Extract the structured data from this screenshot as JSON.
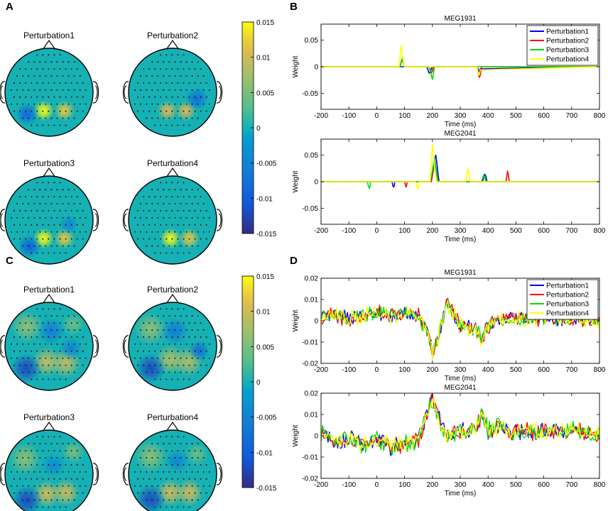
{
  "panel_letters": [
    "A",
    "B",
    "C",
    "D"
  ],
  "colorbar_ticks": [
    "0.015",
    "0.01",
    "0.005",
    "0",
    "-0.005",
    "-0.01",
    "-0.015"
  ],
  "colors": {
    "Perturbation1": "#0000ff",
    "Perturbation2": "#ff0000",
    "Perturbation3": "#00dd00",
    "Perturbation4": "#ffff00"
  },
  "chart_data": [
    {
      "panel": "A",
      "type": "heatmap",
      "subtype": "topographic-maps",
      "maps": [
        "Perturbation1",
        "Perturbation2",
        "Perturbation3",
        "Perturbation4"
      ],
      "colorbar": {
        "min": -0.015,
        "max": 0.015
      },
      "blobs": [
        [
          {
            "x": -0.12,
            "y": -0.42,
            "v": 0.015,
            "s": 0.09
          },
          {
            "x": 0.35,
            "y": -0.42,
            "v": 0.012,
            "s": 0.09
          },
          {
            "x": -0.5,
            "y": -0.5,
            "v": -0.009,
            "s": 0.1
          }
        ],
        [
          {
            "x": -0.12,
            "y": -0.42,
            "v": 0.011,
            "s": 0.09
          },
          {
            "x": 0.3,
            "y": -0.42,
            "v": 0.011,
            "s": 0.09
          },
          {
            "x": 0.55,
            "y": -0.15,
            "v": -0.008,
            "s": 0.1
          }
        ],
        [
          {
            "x": -0.12,
            "y": -0.42,
            "v": 0.015,
            "s": 0.09
          },
          {
            "x": 0.35,
            "y": -0.42,
            "v": 0.012,
            "s": 0.09
          },
          {
            "x": -0.45,
            "y": -0.6,
            "v": -0.01,
            "s": 0.1
          },
          {
            "x": 0.45,
            "y": -0.1,
            "v": -0.005,
            "s": 0.08
          }
        ],
        [
          {
            "x": -0.05,
            "y": -0.42,
            "v": 0.015,
            "s": 0.09
          },
          {
            "x": 0.38,
            "y": -0.42,
            "v": 0.012,
            "s": 0.09
          }
        ]
      ]
    },
    {
      "panel": "B",
      "type": "line",
      "subtype": "multi-subplot",
      "series_names": [
        "Perturbation1",
        "Perturbation2",
        "Perturbation3",
        "Perturbation4"
      ],
      "xlabel": "Time (ms)",
      "ylabel": "Weight",
      "xlim": [
        -200,
        800
      ],
      "xticks": [
        -200,
        -100,
        0,
        100,
        200,
        300,
        400,
        500,
        600,
        700,
        800
      ],
      "subplots": [
        {
          "title": "MEG1931",
          "ylim": [
            -0.08,
            0.08
          ],
          "yticks": [
            -0.05,
            0,
            0.05
          ],
          "legend": "top-right",
          "series": [
            {
              "name": "Perturbation1",
              "x": [
                -200,
                180,
                184,
                188,
                192,
                196,
                200,
                204,
                360,
                364,
                368,
                372,
                800
              ],
              "y": [
                0,
                0,
                -0.006,
                -0.012,
                -0.01,
                -0.004,
                0,
                0,
                0,
                -0.004,
                -0.01,
                -0.004,
                0
              ]
            },
            {
              "name": "Perturbation2",
              "x": [
                -200,
                84,
                88,
                92,
                96,
                100,
                188,
                192,
                196,
                200,
                204,
                360,
                364,
                368,
                372,
                376,
                800
              ],
              "y": [
                0,
                0,
                0.008,
                0.014,
                0.006,
                0,
                0,
                -0.006,
                -0.012,
                -0.008,
                0,
                0,
                -0.01,
                -0.02,
                -0.016,
                0,
                0
              ]
            },
            {
              "name": "Perturbation3",
              "x": [
                -200,
                84,
                88,
                92,
                96,
                100,
                188,
                192,
                196,
                200,
                204,
                208,
                800
              ],
              "y": [
                0,
                0,
                0.01,
                0.016,
                0.008,
                0,
                0,
                -0.008,
                -0.016,
                -0.024,
                -0.012,
                0,
                0
              ]
            },
            {
              "name": "Perturbation4",
              "x": [
                -200,
                80,
                84,
                88,
                92,
                96,
                100,
                360,
                364,
                368,
                372,
                800
              ],
              "y": [
                0,
                0,
                0.02,
                0.04,
                0.025,
                0.008,
                0,
                0,
                -0.01,
                -0.016,
                -0.006,
                0
              ]
            }
          ]
        },
        {
          "title": "MEG2041",
          "ylim": [
            -0.08,
            0.08
          ],
          "yticks": [
            -0.05,
            0,
            0.05
          ],
          "legend": "none",
          "series": [
            {
              "name": "Perturbation1",
              "x": [
                -200,
                55,
                58,
                62,
                65,
                196,
                200,
                204,
                208,
                212,
                216,
                220,
                224,
                380,
                384,
                388,
                392,
                396,
                800
              ],
              "y": [
                0,
                0,
                -0.008,
                -0.01,
                0,
                0,
                0.012,
                0.025,
                0.04,
                0.05,
                0.035,
                0.015,
                0,
                0,
                0.008,
                0.014,
                0.01,
                0,
                0
              ]
            },
            {
              "name": "Perturbation2",
              "x": [
                -200,
                100,
                103,
                106,
                110,
                196,
                200,
                204,
                208,
                212,
                216,
                220,
                464,
                467,
                470,
                473,
                476,
                800
              ],
              "y": [
                0,
                0,
                -0.006,
                -0.01,
                0,
                0,
                0.015,
                0.03,
                0.04,
                0.028,
                0.012,
                0,
                0,
                0.01,
                0.02,
                0.012,
                0,
                0
              ]
            },
            {
              "name": "Perturbation3",
              "x": [
                -200,
                -34,
                -30,
                -26,
                -22,
                192,
                196,
                200,
                204,
                208,
                212,
                216,
                220,
                376,
                380,
                384,
                388,
                392,
                800
              ],
              "y": [
                0,
                0,
                -0.008,
                -0.013,
                0,
                0,
                0.01,
                0.02,
                0.035,
                0.045,
                0.03,
                0.012,
                0,
                0,
                0.006,
                0.013,
                0.008,
                0,
                0
              ]
            },
            {
              "name": "Perturbation4",
              "x": [
                -200,
                140,
                144,
                148,
                152,
                192,
                196,
                200,
                204,
                208,
                212,
                216,
                320,
                324,
                328,
                332,
                336,
                800
              ],
              "y": [
                0,
                0,
                -0.008,
                -0.015,
                0,
                0,
                0.035,
                0.07,
                0.05,
                0.025,
                0.01,
                0,
                0,
                0.015,
                0.025,
                0.01,
                0,
                0
              ]
            }
          ]
        }
      ]
    },
    {
      "panel": "C",
      "type": "heatmap",
      "subtype": "topographic-maps",
      "maps": [
        "Perturbation1",
        "Perturbation2",
        "Perturbation3",
        "Perturbation4"
      ],
      "colorbar": {
        "min": -0.015,
        "max": 0.015
      },
      "blobs": [
        [
          {
            "x": -0.05,
            "y": -0.35,
            "v": 0.009,
            "s": 0.13
          },
          {
            "x": 0.38,
            "y": -0.38,
            "v": 0.009,
            "s": 0.13
          },
          {
            "x": -0.52,
            "y": -0.5,
            "v": -0.012,
            "s": 0.13
          },
          {
            "x": 0.05,
            "y": 0.35,
            "v": -0.006,
            "s": 0.12
          },
          {
            "x": -0.5,
            "y": 0.45,
            "v": 0.006,
            "s": 0.14
          },
          {
            "x": 0.55,
            "y": 0.5,
            "v": 0.004,
            "s": 0.1
          },
          {
            "x": 0.5,
            "y": -0.05,
            "v": -0.005,
            "s": 0.1
          }
        ],
        [
          {
            "x": -0.05,
            "y": -0.3,
            "v": 0.008,
            "s": 0.13
          },
          {
            "x": 0.35,
            "y": -0.35,
            "v": 0.008,
            "s": 0.13
          },
          {
            "x": -0.5,
            "y": -0.5,
            "v": -0.012,
            "s": 0.13
          },
          {
            "x": 0.05,
            "y": 0.35,
            "v": -0.006,
            "s": 0.12
          },
          {
            "x": -0.5,
            "y": 0.4,
            "v": 0.006,
            "s": 0.14
          },
          {
            "x": 0.6,
            "y": -0.1,
            "v": -0.008,
            "s": 0.09
          }
        ],
        [
          {
            "x": -0.05,
            "y": -0.45,
            "v": 0.01,
            "s": 0.12
          },
          {
            "x": 0.38,
            "y": -0.42,
            "v": 0.01,
            "s": 0.12
          },
          {
            "x": -0.5,
            "y": -0.6,
            "v": -0.012,
            "s": 0.13
          },
          {
            "x": -0.55,
            "y": 0.35,
            "v": 0.006,
            "s": 0.14
          },
          {
            "x": 0.1,
            "y": 0.2,
            "v": -0.004,
            "s": 0.1
          },
          {
            "x": 0.55,
            "y": 0.5,
            "v": 0.005,
            "s": 0.1
          }
        ],
        [
          {
            "x": -0.05,
            "y": -0.42,
            "v": 0.01,
            "s": 0.12
          },
          {
            "x": 0.38,
            "y": -0.42,
            "v": 0.01,
            "s": 0.12
          },
          {
            "x": -0.5,
            "y": -0.58,
            "v": -0.012,
            "s": 0.13
          },
          {
            "x": -0.5,
            "y": 0.4,
            "v": 0.006,
            "s": 0.14
          },
          {
            "x": 0.1,
            "y": 0.3,
            "v": -0.005,
            "s": 0.1
          },
          {
            "x": 0.55,
            "y": 0.45,
            "v": 0.004,
            "s": 0.1
          }
        ]
      ]
    },
    {
      "panel": "D",
      "type": "line",
      "subtype": "multi-subplot",
      "series_names": [
        "Perturbation1",
        "Perturbation2",
        "Perturbation3",
        "Perturbation4"
      ],
      "xlabel": "Time (ms)",
      "ylabel": "Weight",
      "xlim": [
        -200,
        800
      ],
      "xticks": [
        -200,
        -100,
        0,
        100,
        200,
        300,
        400,
        500,
        600,
        700,
        800
      ],
      "subplots": [
        {
          "title": "MEG1931",
          "ylim": [
            -0.02,
            0.02
          ],
          "yticks": [
            -0.02,
            -0.01,
            0,
            0.01,
            0.02
          ],
          "legend": "top-right",
          "curve": {
            "x": [
              -200,
              -150,
              -100,
              -50,
              0,
              50,
              100,
              150,
              180,
              200,
              220,
              250,
              280,
              300,
              350,
              380,
              400,
              450,
              500,
              600,
              700,
              800
            ],
            "y": [
              0.002,
              0.003,
              0.001,
              0.002,
              0.004,
              0.002,
              0.004,
              0.002,
              -0.005,
              -0.015,
              -0.008,
              0.008,
              0.002,
              -0.002,
              -0.004,
              -0.008,
              -0.002,
              0.001,
              0.001,
              0.001,
              0.001,
              0
            ]
          },
          "noise_amp": [
            0.003,
            0.0035,
            0.003,
            0.0035
          ]
        },
        {
          "title": "MEG2041",
          "ylim": [
            -0.02,
            0.02
          ],
          "yticks": [
            -0.02,
            -0.01,
            0,
            0.01,
            0.02
          ],
          "legend": "none",
          "curve": {
            "x": [
              -200,
              -150,
              -100,
              -50,
              0,
              50,
              100,
              150,
              180,
              200,
              220,
              250,
              300,
              350,
              380,
              400,
              450,
              480,
              500,
              600,
              700,
              800
            ],
            "y": [
              0.002,
              -0.003,
              -0.001,
              -0.004,
              -0.002,
              -0.005,
              -0.004,
              -0.002,
              0.01,
              0.017,
              0.01,
              0,
              0.002,
              0.003,
              0.01,
              0.002,
              0.005,
              0.001,
              0.002,
              0.002,
              0.003,
              0.001
            ]
          },
          "noise_amp": [
            0.0035,
            0.0035,
            0.004,
            0.0035
          ]
        }
      ]
    }
  ]
}
